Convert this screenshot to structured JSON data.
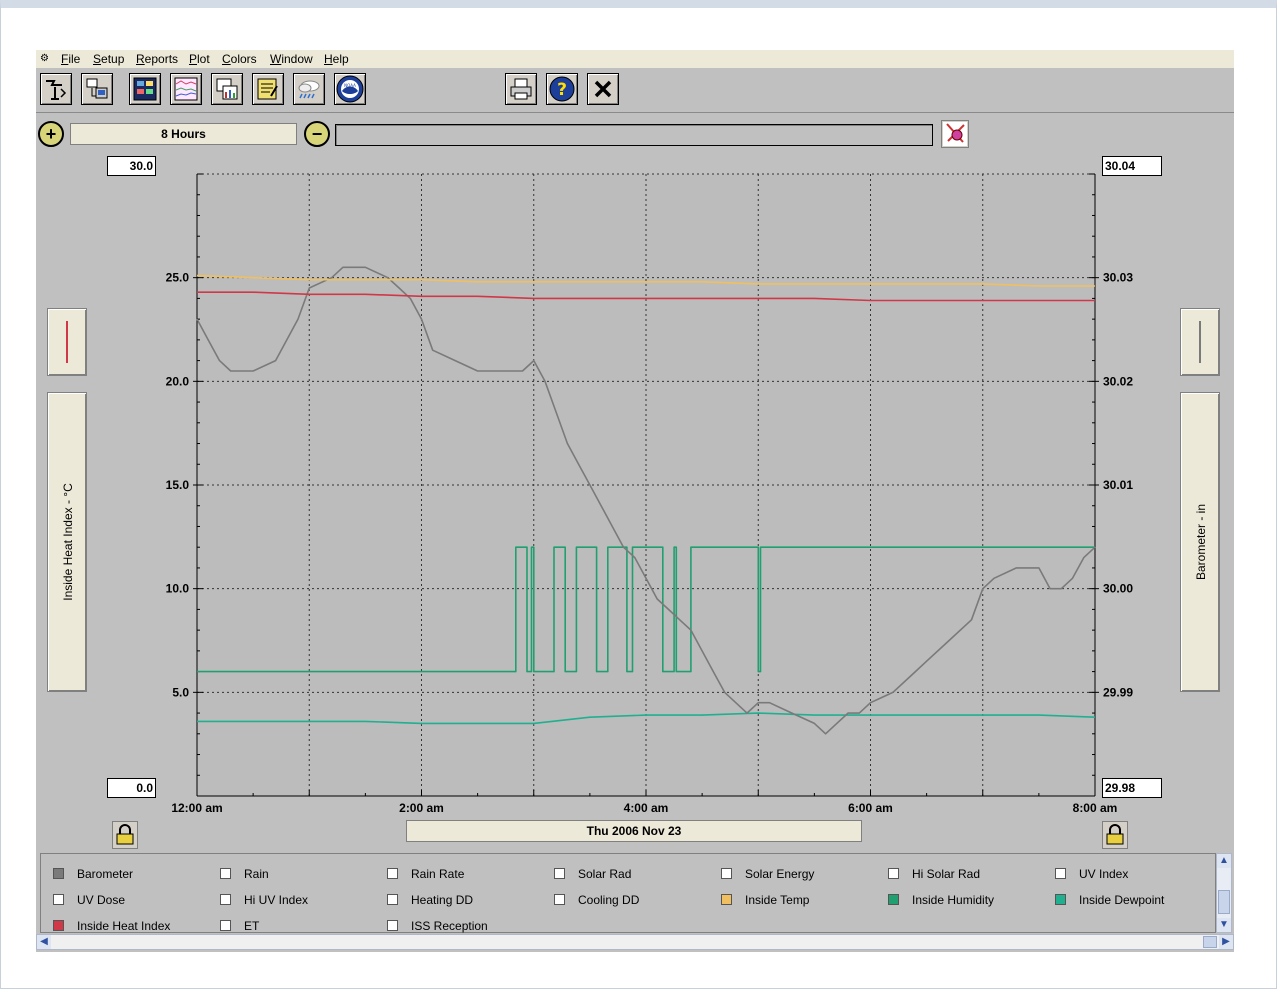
{
  "menu": {
    "items": [
      "File",
      "Setup",
      "Reports",
      "Plot",
      "Colors",
      "Window",
      "Help"
    ]
  },
  "toolbar": {
    "left_icons": [
      "station-icon",
      "download-icon",
      "bulletin-icon",
      "strip-charts-icon",
      "graph-icon",
      "notes-icon",
      "weather-icon",
      "noaa-icon"
    ],
    "right_icons": [
      "printer-icon",
      "help-icon",
      "close-icon"
    ],
    "noaa_label": "NOAA"
  },
  "timebar": {
    "range_label": "8 Hours"
  },
  "plot": {
    "left_top_value": "30.0",
    "left_bottom_value": "0.0",
    "right_top_value": "30.04",
    "right_bottom_value": "29.98",
    "left_axis_label": "Inside Heat Index - °C",
    "right_axis_label": "Barometer - in",
    "date_label": "Thu 2006 Nov 23",
    "colors": {
      "background": "#bcbcbc",
      "grid": "#333333",
      "barometer": "#7a7a7a",
      "inside_temp": "#f0c060",
      "inside_heat_index": "#d03848",
      "inside_humidity": "#20a070",
      "inside_dewpoint": "#20b090"
    }
  },
  "chart_data": {
    "type": "line",
    "title": "",
    "x_tick_labels": [
      "12:00 am",
      "2:00 am",
      "4:00 am",
      "6:00 am",
      "8:00 am"
    ],
    "xlim_hours": [
      0,
      8
    ],
    "left_axis": {
      "label": "Inside Heat Index - °C",
      "ylim": [
        0,
        30
      ],
      "ticks": [
        "0.0",
        "5.0",
        "10.0",
        "15.0",
        "20.0",
        "25.0",
        "30.0"
      ]
    },
    "right_axis": {
      "label": "Barometer - in",
      "ylim": [
        29.98,
        30.04
      ],
      "ticks": [
        "29.98",
        "29.99",
        "30.00",
        "30.01",
        "30.02",
        "30.03",
        "30.04"
      ]
    },
    "grid": true,
    "series": [
      {
        "name": "Inside Temp",
        "axis": "left",
        "x": [
          0,
          0.5,
          1,
          1.5,
          2,
          2.5,
          3,
          3.5,
          4,
          4.5,
          5,
          5.5,
          6,
          6.5,
          7,
          7.5,
          8
        ],
        "values": [
          25.1,
          25.0,
          24.9,
          24.9,
          24.9,
          24.8,
          24.8,
          24.8,
          24.8,
          24.8,
          24.7,
          24.7,
          24.7,
          24.7,
          24.7,
          24.6,
          24.6
        ]
      },
      {
        "name": "Inside Heat Index",
        "axis": "left",
        "x": [
          0,
          0.5,
          1,
          1.5,
          2,
          2.5,
          3,
          3.5,
          4,
          4.5,
          5,
          5.5,
          6,
          6.5,
          7,
          7.5,
          8
        ],
        "values": [
          24.3,
          24.3,
          24.2,
          24.2,
          24.1,
          24.1,
          24.0,
          24.0,
          24.0,
          24.0,
          24.0,
          24.0,
          23.9,
          23.9,
          23.9,
          23.9,
          23.9
        ]
      },
      {
        "name": "Inside Dewpoint",
        "axis": "left",
        "x": [
          0,
          0.5,
          1,
          1.5,
          2,
          2.5,
          3,
          3.5,
          4,
          4.5,
          5,
          5.5,
          6,
          6.5,
          7,
          7.5,
          8
        ],
        "values": [
          3.6,
          3.6,
          3.6,
          3.6,
          3.5,
          3.5,
          3.5,
          3.8,
          3.9,
          3.9,
          4.0,
          3.9,
          3.9,
          3.9,
          3.9,
          3.9,
          3.8
        ]
      },
      {
        "name": "Inside Humidity",
        "axis": "left",
        "step": true,
        "x": [
          0,
          2.83,
          2.84,
          2.93,
          2.94,
          2.98,
          3.0,
          3.17,
          3.18,
          3.27,
          3.28,
          3.37,
          3.38,
          3.55,
          3.56,
          3.65,
          3.66,
          3.82,
          3.83,
          3.88,
          3.9,
          4.13,
          4.15,
          4.25,
          4.27,
          4.4,
          4.42,
          4.98,
          5.0,
          5.02,
          8
        ],
        "values": [
          6,
          6,
          12,
          12,
          6,
          12,
          6,
          6,
          12,
          12,
          6,
          6,
          12,
          12,
          6,
          6,
          12,
          12,
          6,
          12,
          12,
          12,
          6,
          12,
          6,
          12,
          12,
          12,
          6,
          12,
          12
        ]
      },
      {
        "name": "Barometer",
        "axis": "right",
        "x": [
          0,
          0.1,
          0.2,
          0.3,
          0.5,
          0.7,
          0.9,
          1.0,
          1.2,
          1.3,
          1.5,
          1.7,
          1.8,
          1.9,
          2.0,
          2.1,
          2.3,
          2.5,
          2.7,
          2.9,
          3.0,
          3.1,
          3.2,
          3.3,
          3.4,
          3.5,
          3.6,
          3.7,
          3.8,
          3.9,
          4.0,
          4.1,
          4.2,
          4.3,
          4.4,
          4.5,
          4.6,
          4.7,
          4.8,
          4.9,
          5.0,
          5.1,
          5.3,
          5.5,
          5.6,
          5.7,
          5.8,
          5.9,
          6.0,
          6.2,
          6.4,
          6.5,
          6.7,
          6.9,
          7.0,
          7.1,
          7.3,
          7.5,
          7.6,
          7.7,
          7.8,
          7.9,
          8.0
        ],
        "values": [
          30.026,
          30.024,
          30.022,
          30.021,
          30.021,
          30.022,
          30.026,
          30.029,
          30.03,
          30.031,
          30.031,
          30.03,
          30.029,
          30.028,
          30.026,
          30.023,
          30.022,
          30.021,
          30.021,
          30.021,
          30.022,
          30.02,
          30.017,
          30.014,
          30.012,
          30.01,
          30.008,
          30.006,
          30.004,
          30.003,
          30.001,
          29.999,
          29.998,
          29.997,
          29.996,
          29.994,
          29.992,
          29.99,
          29.989,
          29.988,
          29.989,
          29.989,
          29.988,
          29.987,
          29.986,
          29.987,
          29.988,
          29.988,
          29.989,
          29.99,
          29.992,
          29.993,
          29.995,
          29.997,
          30.0,
          30.001,
          30.002,
          30.002,
          30.0,
          30.0,
          30.001,
          30.003,
          30.004
        ]
      }
    ]
  },
  "legend": {
    "items": [
      {
        "label": "Barometer",
        "checked": true,
        "color": "#7a7a7a"
      },
      {
        "label": "Rain",
        "checked": false,
        "color": "#ffffff"
      },
      {
        "label": "Rain Rate",
        "checked": false,
        "color": "#ffffff"
      },
      {
        "label": "Solar Rad",
        "checked": false,
        "color": "#ffffff"
      },
      {
        "label": "Solar Energy",
        "checked": false,
        "color": "#ffffff"
      },
      {
        "label": "Hi Solar Rad",
        "checked": false,
        "color": "#ffffff"
      },
      {
        "label": "UV Index",
        "checked": false,
        "color": "#ffffff"
      },
      {
        "label": "UV Dose",
        "checked": false,
        "color": "#ffffff"
      },
      {
        "label": "Hi UV Index",
        "checked": false,
        "color": "#ffffff"
      },
      {
        "label": "Heating DD",
        "checked": false,
        "color": "#ffffff"
      },
      {
        "label": "Cooling DD",
        "checked": false,
        "color": "#ffffff"
      },
      {
        "label": "Inside Temp",
        "checked": true,
        "color": "#f0c060"
      },
      {
        "label": "Inside Humidity",
        "checked": true,
        "color": "#20a070"
      },
      {
        "label": "Inside Dewpoint",
        "checked": true,
        "color": "#20b090"
      },
      {
        "label": "Inside Heat Index",
        "checked": true,
        "color": "#d03848"
      },
      {
        "label": "ET",
        "checked": false,
        "color": "#ffffff"
      },
      {
        "label": "ISS Reception",
        "checked": false,
        "color": "#ffffff"
      }
    ]
  }
}
